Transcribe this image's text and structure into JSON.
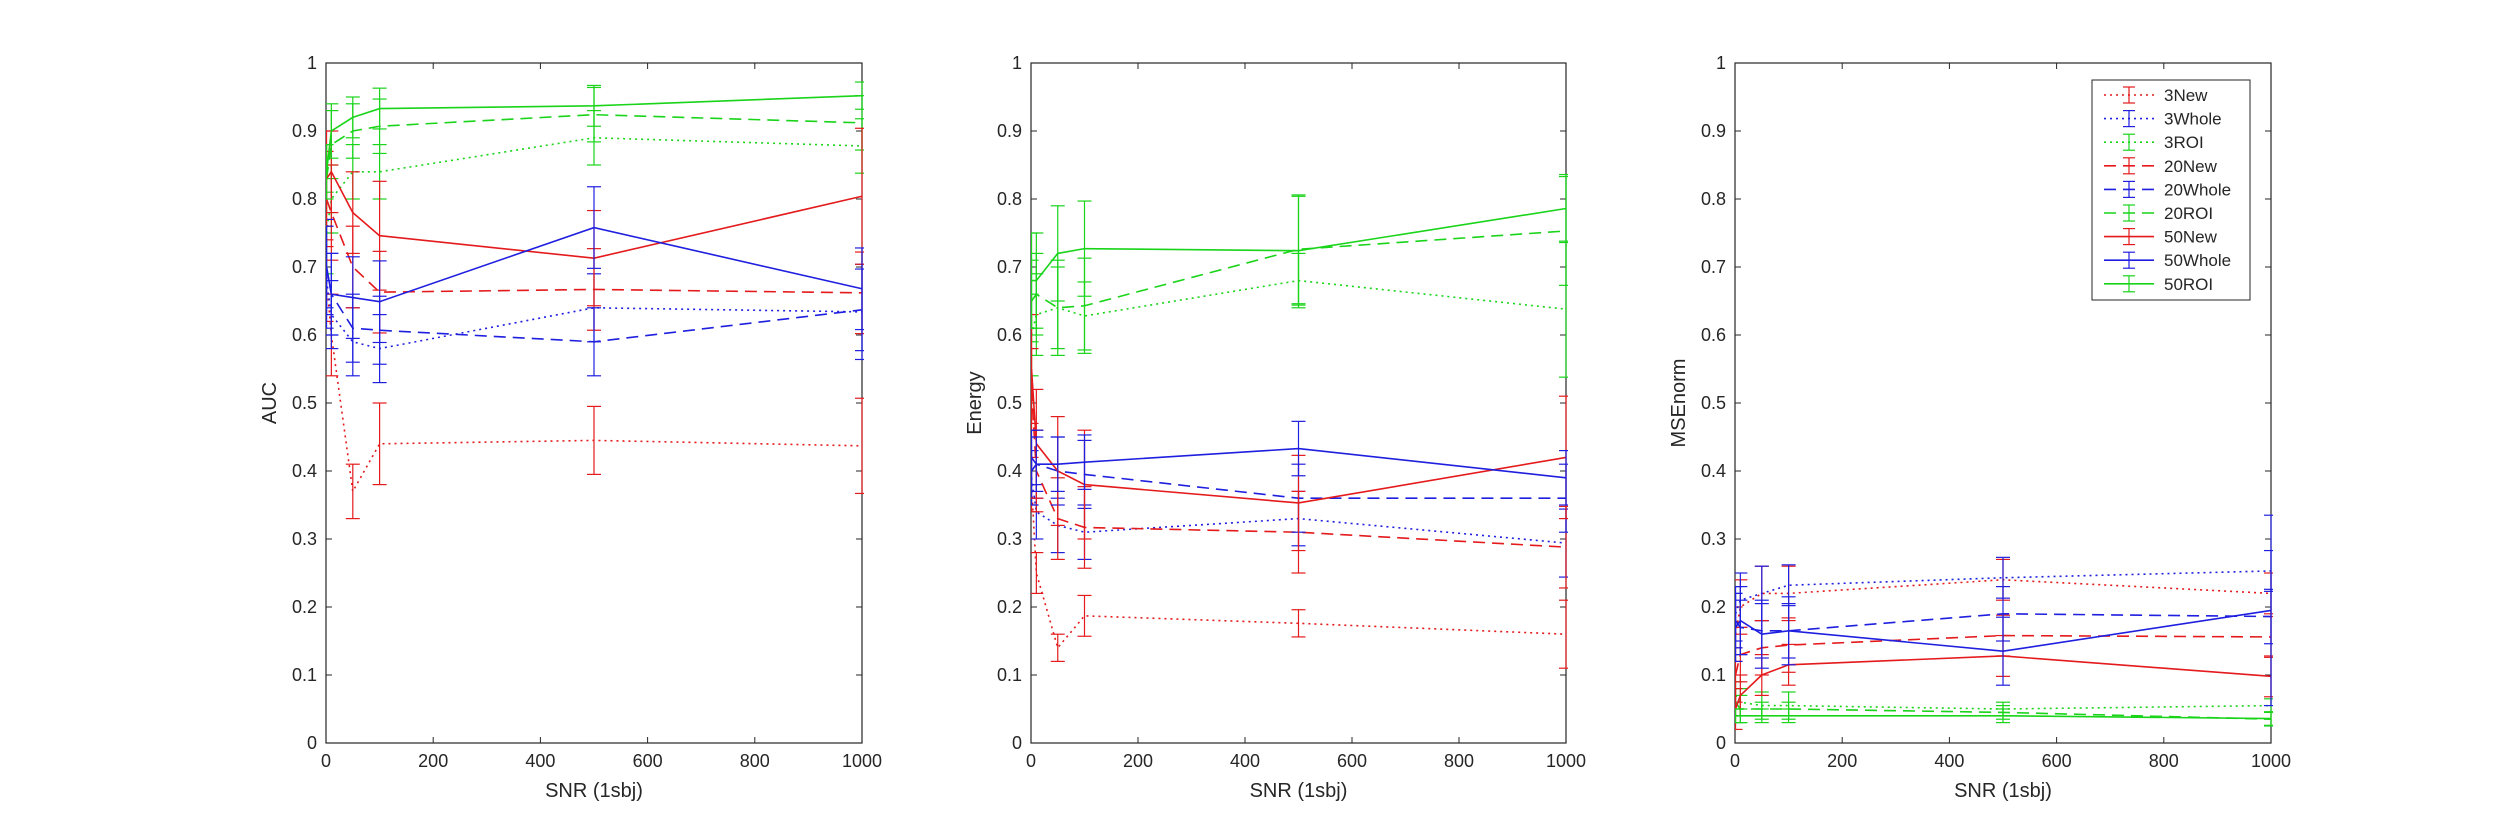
{
  "chart_data": [
    {
      "type": "line",
      "xlabel": "SNR (1sbj)",
      "ylabel": "AUC",
      "xlim": [
        0,
        1000
      ],
      "ylim": [
        0,
        1
      ],
      "xticks": [
        0,
        200,
        400,
        600,
        800,
        1000
      ],
      "yticks": [
        0,
        0.1,
        0.2,
        0.3,
        0.4,
        0.5,
        0.6,
        0.7,
        0.8,
        0.9,
        1
      ],
      "x": [
        1,
        10,
        50,
        100,
        500,
        1000
      ],
      "series": [
        {
          "name": "3New",
          "values": [
            0.68,
            0.6,
            0.37,
            0.44,
            0.445,
            0.437
          ],
          "err": [
            0.06,
            0.06,
            0.04,
            0.06,
            0.05,
            0.07
          ]
        },
        {
          "name": "3Whole",
          "values": [
            0.68,
            0.63,
            0.59,
            0.58,
            0.64,
            0.634
          ],
          "err": [
            0.07,
            0.05,
            0.05,
            0.05,
            0.05,
            0.07
          ]
        },
        {
          "name": "3ROI",
          "values": [
            0.75,
            0.8,
            0.84,
            0.84,
            0.89,
            0.878
          ],
          "err": [
            0.06,
            0.05,
            0.04,
            0.04,
            0.04,
            0.04
          ]
        },
        {
          "name": "20New",
          "values": [
            0.8,
            0.78,
            0.7,
            0.663,
            0.667,
            0.662
          ],
          "err": [
            0.07,
            0.07,
            0.06,
            0.06,
            0.06,
            0.06
          ]
        },
        {
          "name": "20Whole",
          "values": [
            0.7,
            0.66,
            0.61,
            0.607,
            0.59,
            0.637
          ],
          "err": [
            0.07,
            0.06,
            0.05,
            0.05,
            0.05,
            0.06
          ]
        },
        {
          "name": "20ROI",
          "values": [
            0.83,
            0.88,
            0.9,
            0.907,
            0.924,
            0.912
          ],
          "err": [
            0.05,
            0.05,
            0.04,
            0.04,
            0.04,
            0.04
          ]
        },
        {
          "name": "50New",
          "values": [
            0.83,
            0.84,
            0.78,
            0.746,
            0.713,
            0.804
          ],
          "err": [
            0.07,
            0.06,
            0.06,
            0.08,
            0.07,
            0.1
          ]
        },
        {
          "name": "50Whole",
          "values": [
            0.7,
            0.66,
            0.655,
            0.649,
            0.758,
            0.668
          ],
          "err": [
            0.06,
            0.06,
            0.06,
            0.06,
            0.06,
            0.06
          ]
        },
        {
          "name": "50ROI",
          "values": [
            0.84,
            0.9,
            0.92,
            0.933,
            0.937,
            0.952
          ],
          "err": [
            0.04,
            0.04,
            0.03,
            0.03,
            0.03,
            0.02
          ]
        }
      ]
    },
    {
      "type": "line",
      "xlabel": "SNR (1sbj)",
      "ylabel": "Energy",
      "xlim": [
        0,
        1000
      ],
      "ylim": [
        0,
        1
      ],
      "xticks": [
        0,
        200,
        400,
        600,
        800,
        1000
      ],
      "yticks": [
        0,
        0.1,
        0.2,
        0.3,
        0.4,
        0.5,
        0.6,
        0.7,
        0.8,
        0.9,
        1
      ],
      "x": [
        1,
        10,
        50,
        100,
        500,
        1000
      ],
      "series": [
        {
          "name": "3New",
          "values": [
            0.38,
            0.25,
            0.14,
            0.187,
            0.176,
            0.16
          ],
          "err": [
            0.04,
            0.03,
            0.02,
            0.03,
            0.02,
            0.05
          ]
        },
        {
          "name": "3Whole",
          "values": [
            0.39,
            0.34,
            0.32,
            0.31,
            0.33,
            0.294
          ],
          "err": [
            0.04,
            0.04,
            0.04,
            0.04,
            0.04,
            0.05
          ]
        },
        {
          "name": "3ROI",
          "values": [
            0.6,
            0.63,
            0.64,
            0.628,
            0.68,
            0.638
          ],
          "err": [
            0.06,
            0.06,
            0.06,
            0.05,
            0.04,
            0.1
          ]
        },
        {
          "name": "20New",
          "values": [
            0.52,
            0.4,
            0.33,
            0.317,
            0.31,
            0.288
          ],
          "err": [
            0.06,
            0.06,
            0.06,
            0.06,
            0.06,
            0.06
          ]
        },
        {
          "name": "20Whole",
          "values": [
            0.4,
            0.41,
            0.4,
            0.395,
            0.36,
            0.36
          ],
          "err": [
            0.05,
            0.05,
            0.05,
            0.05,
            0.05,
            0.05
          ]
        },
        {
          "name": "20ROI",
          "values": [
            0.65,
            0.66,
            0.64,
            0.643,
            0.726,
            0.753
          ],
          "err": [
            0.06,
            0.06,
            0.07,
            0.07,
            0.08,
            0.08
          ]
        },
        {
          "name": "50New",
          "values": [
            0.55,
            0.44,
            0.4,
            0.38,
            0.353,
            0.42
          ],
          "err": [
            0.08,
            0.08,
            0.08,
            0.08,
            0.07,
            0.09
          ]
        },
        {
          "name": "50Whole",
          "values": [
            0.42,
            0.41,
            0.41,
            0.413,
            0.433,
            0.39
          ],
          "err": [
            0.04,
            0.04,
            0.04,
            0.04,
            0.04,
            0.04
          ]
        },
        {
          "name": "50ROI",
          "values": [
            0.68,
            0.68,
            0.72,
            0.727,
            0.724,
            0.786
          ],
          "err": [
            0.07,
            0.07,
            0.07,
            0.07,
            0.08,
            0.05
          ]
        }
      ]
    },
    {
      "type": "line",
      "xlabel": "SNR (1sbj)",
      "ylabel": "MSEnorm",
      "xlim": [
        0,
        1000
      ],
      "ylim": [
        0,
        1
      ],
      "xticks": [
        0,
        200,
        400,
        600,
        800,
        1000
      ],
      "yticks": [
        0,
        0.1,
        0.2,
        0.3,
        0.4,
        0.5,
        0.6,
        0.7,
        0.8,
        0.9,
        1
      ],
      "x": [
        1,
        10,
        50,
        100,
        500,
        1000
      ],
      "legend_position": "top-right",
      "series": [
        {
          "name": "3New",
          "values": [
            0.16,
            0.2,
            0.22,
            0.22,
            0.24,
            0.22
          ],
          "err": [
            0.04,
            0.04,
            0.04,
            0.04,
            0.03,
            0.03
          ]
        },
        {
          "name": "3Whole",
          "values": [
            0.19,
            0.21,
            0.22,
            0.232,
            0.243,
            0.253
          ],
          "err": [
            0.04,
            0.04,
            0.04,
            0.03,
            0.03,
            0.03
          ]
        },
        {
          "name": "3ROI",
          "values": [
            0.07,
            0.06,
            0.055,
            0.055,
            0.05,
            0.055
          ],
          "err": [
            0.02,
            0.02,
            0.02,
            0.02,
            0.01,
            0.01
          ]
        },
        {
          "name": "20New",
          "values": [
            0.1,
            0.13,
            0.14,
            0.144,
            0.158,
            0.156
          ],
          "err": [
            0.04,
            0.04,
            0.04,
            0.04,
            0.03,
            0.03
          ]
        },
        {
          "name": "20Whole",
          "values": [
            0.18,
            0.17,
            0.165,
            0.165,
            0.19,
            0.186
          ],
          "err": [
            0.04,
            0.04,
            0.04,
            0.04,
            0.04,
            0.04
          ]
        },
        {
          "name": "20ROI",
          "values": [
            0.06,
            0.05,
            0.05,
            0.05,
            0.045,
            0.035
          ],
          "err": [
            0.02,
            0.02,
            0.01,
            0.01,
            0.01,
            0.01
          ]
        },
        {
          "name": "50New",
          "values": [
            0.05,
            0.07,
            0.1,
            0.115,
            0.128,
            0.098
          ],
          "err": [
            0.03,
            0.03,
            0.03,
            0.03,
            0.03,
            0.03
          ]
        },
        {
          "name": "50Whole",
          "values": [
            0.17,
            0.18,
            0.16,
            0.165,
            0.135,
            0.195
          ],
          "err": [
            0.05,
            0.05,
            0.05,
            0.05,
            0.05,
            0.14
          ]
        },
        {
          "name": "50ROI",
          "values": [
            0.04,
            0.04,
            0.04,
            0.04,
            0.04,
            0.036
          ],
          "err": [
            0.01,
            0.01,
            0.01,
            0.01,
            0.01,
            0.01
          ]
        }
      ]
    }
  ],
  "legend": [
    {
      "label": "3New",
      "color": "#e41a1c",
      "dash": "dotted"
    },
    {
      "label": "3Whole",
      "color": "#1f1fe0",
      "dash": "dotted"
    },
    {
      "label": "3ROI",
      "color": "#19d419",
      "dash": "dotted"
    },
    {
      "label": "20New",
      "color": "#e41a1c",
      "dash": "dashed"
    },
    {
      "label": "20Whole",
      "color": "#1f1fe0",
      "dash": "dashed"
    },
    {
      "label": "20ROI",
      "color": "#19d419",
      "dash": "dashed"
    },
    {
      "label": "50New",
      "color": "#e41a1c",
      "dash": "solid"
    },
    {
      "label": "50Whole",
      "color": "#1f1fe0",
      "dash": "solid"
    },
    {
      "label": "50ROI",
      "color": "#19d419",
      "dash": "solid"
    }
  ]
}
